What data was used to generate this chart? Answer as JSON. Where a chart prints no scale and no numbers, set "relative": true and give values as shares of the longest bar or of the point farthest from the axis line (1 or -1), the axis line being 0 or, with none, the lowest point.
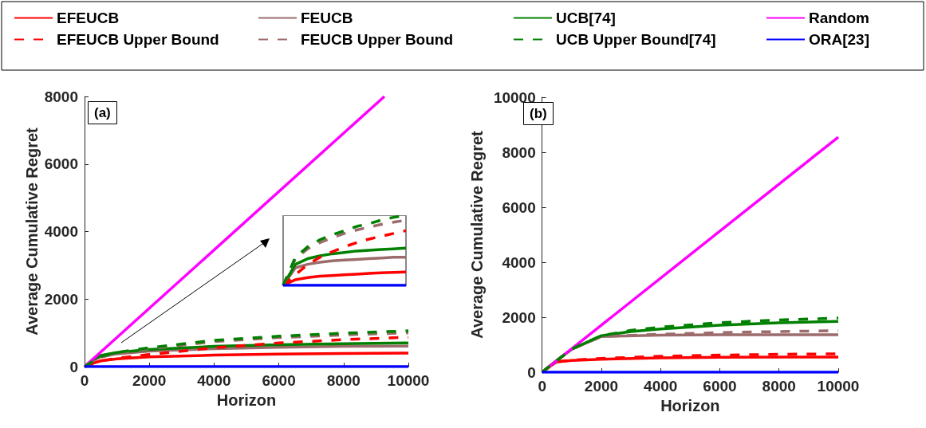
{
  "chart_data": [
    {
      "type": "line",
      "title": "(a)",
      "xlabel": "Horizon",
      "ylabel": "Average Cumulative Regret",
      "xlim": [
        0,
        10000
      ],
      "xticks": [
        0,
        2000,
        4000,
        6000,
        8000,
        10000
      ],
      "ylim": [
        0,
        8000
      ],
      "yticks": [
        0,
        2000,
        4000,
        6000,
        8000
      ],
      "grid": false,
      "legend": "top",
      "marker": "none",
      "series": [
        {
          "name": "EFEUCB",
          "color": "#ff0000",
          "line_style": "solid",
          "x": [
            0,
            250,
            500,
            1000,
            2000,
            4000,
            6000,
            8000,
            10000
          ],
          "values": [
            0,
            100,
            170,
            230,
            290,
            340,
            370,
            390,
            400
          ]
        },
        {
          "name": "FEUCB",
          "color": "#9c6b6b",
          "line_style": "solid",
          "x": [
            0,
            250,
            500,
            1000,
            2000,
            4000,
            6000,
            8000,
            10000
          ],
          "values": [
            0,
            180,
            290,
            380,
            460,
            530,
            570,
            600,
            610
          ]
        },
        {
          "name": "UCB[74]",
          "color": "#008000",
          "line_style": "solid",
          "x": [
            0,
            250,
            500,
            1000,
            2000,
            4000,
            6000,
            8000,
            10000
          ],
          "values": [
            0,
            200,
            330,
            420,
            510,
            600,
            650,
            680,
            700
          ]
        },
        {
          "name": "Random",
          "color": "#ff00ff",
          "line_style": "solid",
          "x": [
            0,
            9260
          ],
          "values": [
            0,
            8000
          ]
        },
        {
          "name": "EFEUCB Upper Bound",
          "color": "#ff0000",
          "line_style": "dashed",
          "x": [
            0,
            250,
            500,
            1000,
            2000,
            4000,
            6000,
            8000,
            10000
          ],
          "values": [
            0,
            90,
            170,
            250,
            360,
            560,
            700,
            800,
            870
          ]
        },
        {
          "name": "FEUCB Upper Bound",
          "color": "#9c6b6b",
          "line_style": "dashed",
          "x": [
            0,
            250,
            500,
            1000,
            2000,
            4000,
            6000,
            8000,
            10000
          ],
          "values": [
            0,
            140,
            280,
            400,
            530,
            740,
            860,
            940,
            1000
          ]
        },
        {
          "name": "UCB Upper Bound[74]",
          "color": "#008000",
          "line_style": "dashed",
          "x": [
            0,
            250,
            500,
            1000,
            2000,
            4000,
            6000,
            8000,
            10000
          ],
          "values": [
            0,
            150,
            300,
            420,
            560,
            780,
            900,
            990,
            1060
          ]
        },
        {
          "name": "ORA[23]",
          "color": "#0000ff",
          "line_style": "solid",
          "x": [
            0,
            10000
          ],
          "values": [
            0,
            0
          ]
        }
      ]
    },
    {
      "type": "line",
      "title": "(b)",
      "xlabel": "Horizon",
      "ylabel": "Average Cumulative Regret",
      "xlim": [
        0,
        10000
      ],
      "xticks": [
        0,
        2000,
        4000,
        6000,
        8000,
        10000
      ],
      "ylim": [
        0,
        10000
      ],
      "yticks": [
        0,
        2000,
        4000,
        6000,
        8000,
        10000
      ],
      "grid": false,
      "marker": "none",
      "series": [
        {
          "color": "#ff0000",
          "line_style": "solid",
          "x": [
            0,
            250,
            500,
            1000,
            2000,
            4000,
            6000,
            8000,
            10000
          ],
          "values": [
            0,
            200,
            380,
            430,
            470,
            520,
            540,
            550,
            550
          ]
        },
        {
          "color": "#9c6b6b",
          "line_style": "solid",
          "x": [
            0,
            250,
            500,
            1000,
            2000,
            4000,
            6000,
            8000,
            10000
          ],
          "values": [
            0,
            220,
            430,
            840,
            1300,
            1350,
            1360,
            1360,
            1360
          ]
        },
        {
          "color": "#008000",
          "line_style": "solid",
          "x": [
            0,
            250,
            500,
            1000,
            2000,
            3000,
            4000,
            6000,
            8000,
            10000
          ],
          "values": [
            0,
            220,
            430,
            840,
            1330,
            1480,
            1570,
            1710,
            1800,
            1850
          ]
        },
        {
          "color": "#ff00ff",
          "line_style": "solid",
          "x": [
            0,
            10000
          ],
          "values": [
            0,
            8550
          ]
        },
        {
          "color": "#ff0000",
          "line_style": "dashed",
          "x": [
            0,
            250,
            500,
            1000,
            2000,
            4000,
            6000,
            8000,
            10000
          ],
          "values": [
            0,
            200,
            380,
            440,
            500,
            580,
            620,
            650,
            670
          ]
        },
        {
          "color": "#9c6b6b",
          "line_style": "dashed",
          "x": [
            0,
            250,
            500,
            1000,
            2000,
            4000,
            6000,
            8000,
            10000
          ],
          "values": [
            0,
            220,
            430,
            840,
            1300,
            1380,
            1440,
            1480,
            1510
          ]
        },
        {
          "color": "#008000",
          "line_style": "dashed",
          "x": [
            0,
            250,
            500,
            1000,
            2000,
            3000,
            4000,
            6000,
            8000,
            10000
          ],
          "values": [
            0,
            220,
            430,
            840,
            1330,
            1520,
            1640,
            1800,
            1900,
            1970
          ]
        },
        {
          "color": "#0000ff",
          "line_style": "solid",
          "x": [
            0,
            10000
          ],
          "values": [
            0,
            0
          ]
        }
      ]
    },
    {
      "type": "line",
      "relative": true,
      "marker": "none",
      "categories": [
        null,
        null,
        null,
        null,
        null,
        null,
        null,
        null,
        null,
        null,
        null
      ],
      "series": [
        {
          "color": "#ff0000",
          "line_style": "solid",
          "values": [
            0,
            0.08,
            0.11,
            0.13,
            0.14,
            0.15,
            0.16,
            0.17,
            0.18,
            0.185,
            0.19
          ]
        },
        {
          "color": "#9c6b6b",
          "line_style": "solid",
          "values": [
            0,
            0.25,
            0.3,
            0.33,
            0.35,
            0.36,
            0.37,
            0.38,
            0.39,
            0.4,
            0.4
          ]
        },
        {
          "color": "#008000",
          "line_style": "solid",
          "values": [
            0,
            0.3,
            0.38,
            0.42,
            0.45,
            0.47,
            0.49,
            0.5,
            0.51,
            0.52,
            0.53
          ]
        },
        {
          "color": "#ff0000",
          "line_style": "dashed",
          "values": [
            0,
            0.15,
            0.3,
            0.4,
            0.48,
            0.55,
            0.61,
            0.66,
            0.7,
            0.74,
            0.78
          ]
        },
        {
          "color": "#9c6b6b",
          "line_style": "dashed",
          "values": [
            0,
            0.38,
            0.52,
            0.61,
            0.68,
            0.74,
            0.79,
            0.83,
            0.87,
            0.9,
            0.93
          ]
        },
        {
          "color": "#008000",
          "line_style": "dashed",
          "values": [
            0,
            0.4,
            0.55,
            0.65,
            0.72,
            0.78,
            0.84,
            0.88,
            0.93,
            0.97,
            1
          ]
        },
        {
          "color": "#0000ff",
          "line_style": "solid",
          "values": [
            0,
            0,
            0,
            0,
            0,
            0,
            0,
            0,
            0,
            0,
            0
          ]
        }
      ]
    }
  ]
}
